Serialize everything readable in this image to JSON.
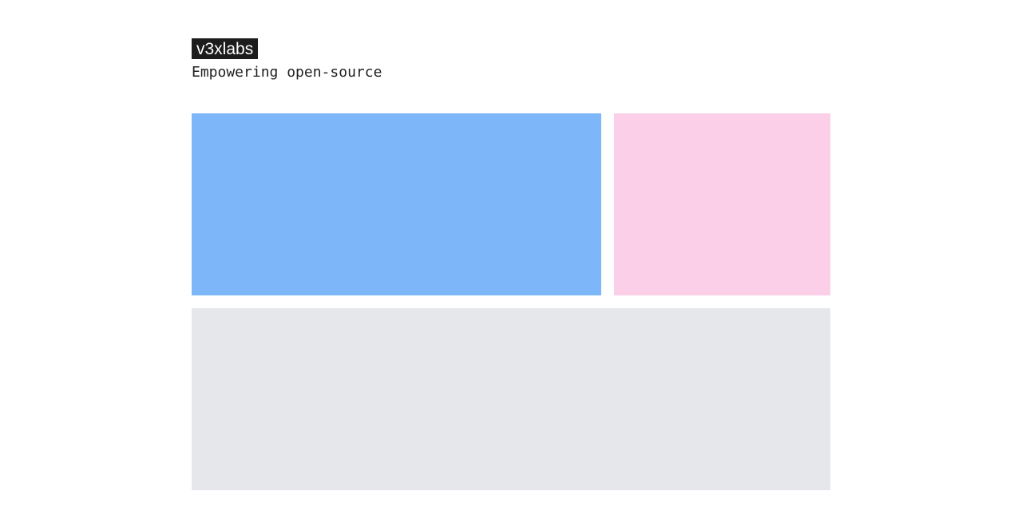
{
  "header": {
    "logo_text": "v3xlabs",
    "tagline": "Empowering open-source"
  },
  "colors": {
    "logo_bg": "#1c1c1c",
    "panel_left": "#7eb6fa",
    "panel_right": "#fbcfe8",
    "panel_bottom": "#e5e7eb"
  },
  "panels": [
    {
      "name": "featured-panel",
      "color_key": "panel_left"
    },
    {
      "name": "side-panel",
      "color_key": "panel_right"
    },
    {
      "name": "bottom-panel",
      "color_key": "panel_bottom"
    }
  ]
}
